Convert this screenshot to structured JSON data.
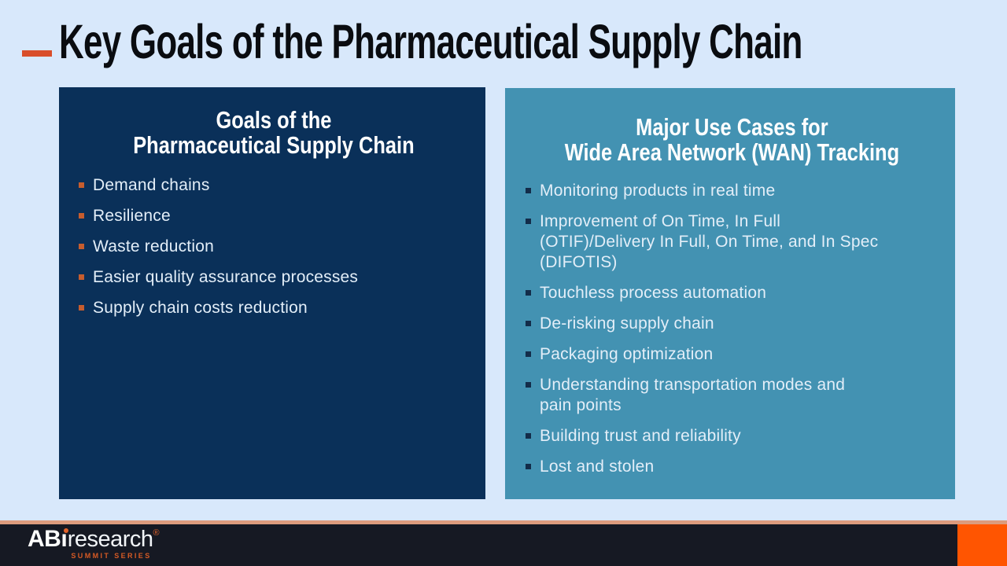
{
  "slide": {
    "title": "Key Goals of the Pharmaceutical Supply Chain"
  },
  "left_panel": {
    "title_line1": "Goals of the",
    "title_line2": "Pharmaceutical Supply Chain",
    "items": [
      "Demand chains",
      "Resilience",
      "Waste reduction",
      "Easier quality assurance processes",
      "Supply chain costs reduction"
    ]
  },
  "right_panel": {
    "title_line1": "Major Use Cases for",
    "title_line2": "Wide Area Network (WAN) Tracking",
    "items": [
      "Monitoring products in real time",
      "Improvement of On Time, In Full\n(OTIF)/Delivery In Full, On Time, and In Spec\n(DIFOTIS)",
      "Touchless process automation",
      "De-risking supply chain",
      "Packaging optimization",
      "Understanding transportation modes and\npain points",
      "Building trust and reliability",
      "Lost and stolen"
    ]
  },
  "footer": {
    "logo_ab": "AB",
    "logo_i_stem": "ı",
    "logo_rest": "research",
    "logo_reg": "®",
    "tagline": "SUMMIT SERIES"
  },
  "colors": {
    "background": "#D8E8FB",
    "title_text": "#0A0C10",
    "title_dash": "#D94E2A",
    "left_panel_bg": "#0A3059",
    "right_panel_bg": "#4392B2",
    "left_bullet": "#C65D2E",
    "right_bullet": "#132C49",
    "panel_text": "#E3EEF8",
    "footer_line": "#DC9B7D",
    "footer_bar": "#161923",
    "footer_accent": "#FF5501",
    "brand_orange": "#E2632B"
  }
}
